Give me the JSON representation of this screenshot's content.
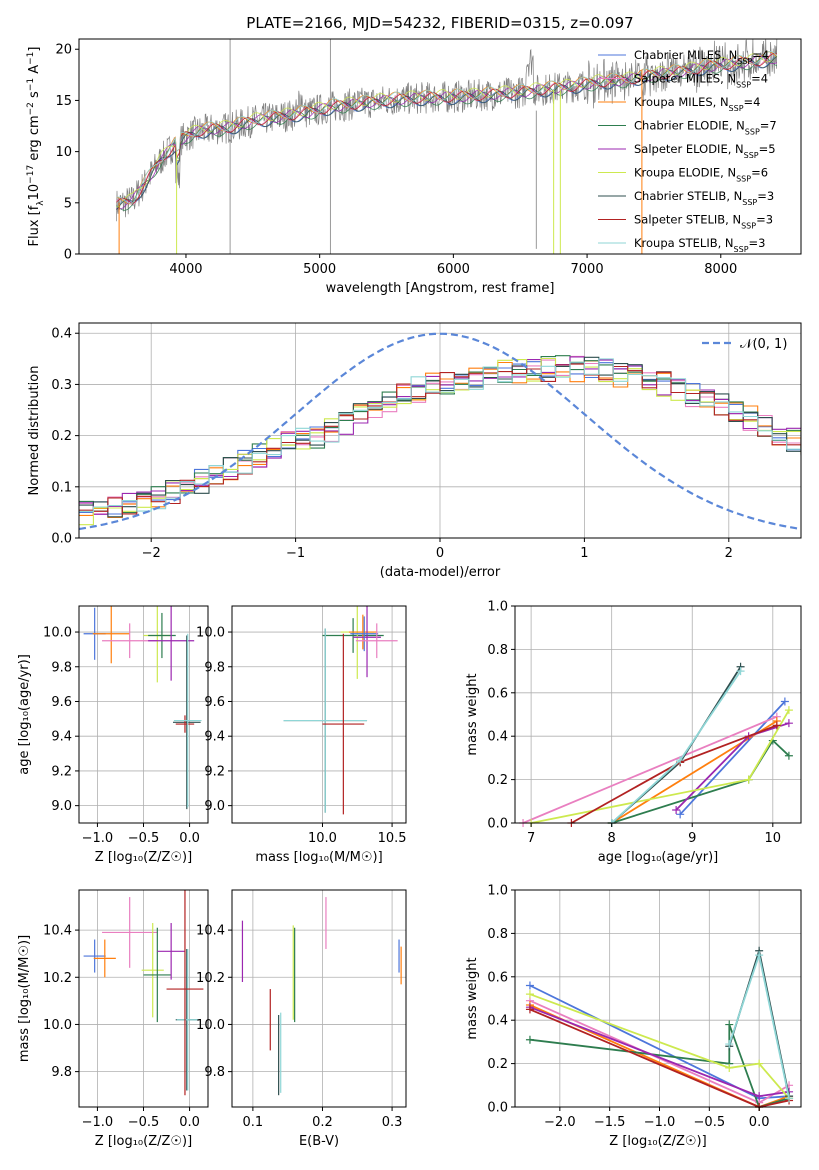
{
  "figure_title": "PLATE=2166, MJD=54232, FIBERID=0315, z=0.097",
  "colors": {
    "Chabrier MILES": "#4d76db",
    "Salpeter MILES": "#e97fc0",
    "Kroupa MILES": "#ff7f0e",
    "Chabrier ELODIE": "#2e7d4f",
    "Salpeter ELODIE": "#9b27b0",
    "Kroupa ELODIE": "#cde94f",
    "Chabrier STELIB": "#2f4f4f",
    "Salpeter STELIB": "#b22222",
    "Kroupa STELIB": "#8fd6d6",
    "data": "#808080",
    "normal": "#5b87d8"
  },
  "chart_data": [
    {
      "id": "spectrum",
      "type": "line",
      "title": "PLATE=2166, MJD=54232, FIBERID=0315, z=0.097",
      "xlabel": "wavelength [Angstrom, rest frame]",
      "ylabel_parts": [
        "Flux [f",
        "λ",
        "10",
        "−17",
        " erg cm",
        "−2",
        " s",
        "−1",
        " A",
        "−1",
        "]"
      ],
      "xlim": [
        3200,
        8600
      ],
      "ylim": [
        0,
        21
      ],
      "xticks": [
        4000,
        5000,
        6000,
        7000,
        8000
      ],
      "yticks": [
        0,
        5,
        10,
        15,
        20
      ],
      "grid": false,
      "legend_position": "right",
      "legend": [
        {
          "label": "Chabrier MILES, N",
          "sub": "SSP",
          "n": "=4",
          "color": "#4d76db"
        },
        {
          "label": "Salpeter MILES, N",
          "sub": "SSP",
          "n": "=4",
          "color": "#e97fc0"
        },
        {
          "label": "Kroupa MILES, N",
          "sub": "SSP",
          "n": "=4",
          "color": "#ff7f0e"
        },
        {
          "label": "Chabrier ELODIE, N",
          "sub": "SSP",
          "n": "=7",
          "color": "#2e7d4f"
        },
        {
          "label": "Salpeter ELODIE, N",
          "sub": "SSP",
          "n": "=5",
          "color": "#9b27b0"
        },
        {
          "label": "Kroupa ELODIE, N",
          "sub": "SSP",
          "n": "=6",
          "color": "#cde94f"
        },
        {
          "label": "Chabrier STELIB, N",
          "sub": "SSP",
          "n": "=3",
          "color": "#2f4f4f"
        },
        {
          "label": "Salpeter STELIB, N",
          "sub": "SSP",
          "n": "=3",
          "color": "#b22222"
        },
        {
          "label": "Kroupa STELIB, N",
          "sub": "SSP",
          "n": "=3",
          "color": "#8fd6d6"
        }
      ],
      "continuum_x": [
        3480,
        3600,
        3700,
        3800,
        3900,
        4000,
        4100,
        4200,
        4300,
        4400,
        4500,
        4700,
        4900,
        5100,
        5300,
        5500,
        5700,
        5900,
        6100,
        6300,
        6500,
        6700,
        6900,
        7100,
        7300,
        7500,
        7700,
        7900,
        8100,
        8300,
        8400
      ],
      "continuum_y": [
        4.8,
        5.2,
        7.0,
        9.0,
        10.5,
        11.5,
        12.0,
        12.2,
        12.3,
        12.6,
        13.0,
        13.4,
        13.8,
        14.4,
        14.7,
        15.0,
        15.2,
        15.3,
        15.4,
        15.6,
        15.8,
        16.1,
        16.4,
        16.8,
        17.0,
        17.5,
        17.8,
        18.3,
        18.6,
        18.9,
        19.1
      ]
    },
    {
      "id": "residuals",
      "type": "histogram",
      "xlabel": "(data-model)/error",
      "ylabel": "Normed distribution",
      "xlim": [
        -2.5,
        2.5
      ],
      "ylim": [
        0,
        0.42
      ],
      "xticks": [
        -2,
        -1,
        0,
        1,
        2
      ],
      "yticks": [
        0.0,
        0.1,
        0.2,
        0.3,
        0.4
      ],
      "grid": true,
      "legend_position": "upper right",
      "normal_label": "𝒩(0, 1)",
      "bin_edges_start": -2.5,
      "bin_width": 0.1,
      "base_values": [
        0.05,
        0.055,
        0.06,
        0.065,
        0.07,
        0.08,
        0.09,
        0.1,
        0.11,
        0.125,
        0.135,
        0.15,
        0.16,
        0.175,
        0.185,
        0.195,
        0.2,
        0.21,
        0.225,
        0.24,
        0.255,
        0.27,
        0.28,
        0.29,
        0.3,
        0.305,
        0.31,
        0.315,
        0.32,
        0.325,
        0.325,
        0.33,
        0.33,
        0.335,
        0.33,
        0.33,
        0.325,
        0.32,
        0.315,
        0.31,
        0.3,
        0.29,
        0.28,
        0.27,
        0.26,
        0.245,
        0.235,
        0.22,
        0.205,
        0.19,
        0.18,
        0.165,
        0.155,
        0.145,
        0.135,
        0.125,
        0.11,
        0.1,
        0.09,
        0.085,
        0.08,
        0.075,
        0.07,
        0.065,
        0.06,
        0.055,
        0.055,
        0.05,
        0.045,
        0.04,
        0.04,
        0.035,
        0.035,
        0.03,
        0.03,
        0.03,
        0.025,
        0.025,
        0.025,
        0.02,
        0.02
      ]
    },
    {
      "id": "age_vs_Z",
      "type": "errorbar",
      "xlabel": "Z [log₁₀(Z/Z☉)]",
      "ylabel": "age  [log₁₀(age/yr)]",
      "xlim": [
        -1.2,
        0.2
      ],
      "ylim": [
        8.9,
        10.15
      ],
      "xticks": [
        -1.0,
        -0.5,
        0.0
      ],
      "xtick_labels": [
        "−1.0",
        "−0.5",
        "0.0"
      ],
      "yticks": [
        9.0,
        9.2,
        9.4,
        9.6,
        9.8,
        10.0
      ],
      "grid": true,
      "points": [
        {
          "model": "Chabrier MILES",
          "x": -1.03,
          "xerr": 0.12,
          "y": 9.99,
          "yerr": 0.15
        },
        {
          "model": "Kroupa MILES",
          "x": -0.85,
          "xerr": 0.2,
          "y": 9.99,
          "yerr": 0.17
        },
        {
          "model": "Salpeter MILES",
          "x": -0.65,
          "xerr": 0.3,
          "y": 9.95,
          "yerr": 0.1
        },
        {
          "model": "Kroupa ELODIE",
          "x": -0.35,
          "xerr": 0.15,
          "y": 9.98,
          "yerr": 0.27
        },
        {
          "model": "Chabrier ELODIE",
          "x": -0.3,
          "xerr": 0.15,
          "y": 9.98,
          "yerr": 0.13
        },
        {
          "model": "Salpeter ELODIE",
          "x": -0.2,
          "xerr": 0.25,
          "y": 9.95,
          "yerr": 0.23
        },
        {
          "model": "Chabrier STELIB",
          "x": -0.03,
          "xerr": 0.15,
          "y": 9.48,
          "yerr": 0.5
        },
        {
          "model": "Salpeter STELIB",
          "x": -0.05,
          "xerr": 0.1,
          "y": 9.47,
          "yerr": 0.05
        },
        {
          "model": "Kroupa STELIB",
          "x": -0.02,
          "xerr": 0.15,
          "y": 9.49,
          "yerr": 0.5
        }
      ]
    },
    {
      "id": "age_vs_mass",
      "type": "errorbar",
      "xlabel": "mass [log₁₀(M/M☉)]",
      "ylabel": "",
      "xlim": [
        9.35,
        10.6
      ],
      "ylim": [
        8.9,
        10.15
      ],
      "xticks": [
        10.0,
        10.5
      ],
      "xtick_labels": [
        "10.0",
        "10.5"
      ],
      "yticks": [
        9.0,
        9.2,
        9.4,
        9.6,
        9.8,
        10.0
      ],
      "grid": true,
      "points": [
        {
          "model": "Chabrier ELODIE",
          "x": 10.22,
          "xerr": 0.22,
          "y": 9.98,
          "yerr": 0.1
        },
        {
          "model": "Kroupa ELODIE",
          "x": 10.25,
          "xerr": 0.12,
          "y": 10.0,
          "yerr": 0.27
        },
        {
          "model": "Kroupa MILES",
          "x": 10.29,
          "xerr": 0.1,
          "y": 10.0,
          "yerr": 0.1
        },
        {
          "model": "Salpeter ELODIE",
          "x": 10.32,
          "xerr": 0.1,
          "y": 9.97,
          "yerr": 0.23
        },
        {
          "model": "Chabrier MILES",
          "x": 10.3,
          "xerr": 0.1,
          "y": 9.99,
          "yerr": 0.1
        },
        {
          "model": "Salpeter MILES",
          "x": 10.39,
          "xerr": 0.15,
          "y": 9.95,
          "yerr": 0.1
        },
        {
          "model": "Chabrier STELIB",
          "x": 10.02,
          "xerr": 0.3,
          "y": 9.49,
          "yerr": 0.53
        },
        {
          "model": "Kroupa STELIB",
          "x": 10.02,
          "xerr": 0.3,
          "y": 9.49,
          "yerr": 0.53
        },
        {
          "model": "Salpeter STELIB",
          "x": 10.15,
          "xerr": 0.15,
          "y": 9.47,
          "yerr": 0.52
        }
      ]
    },
    {
      "id": "weight_vs_age",
      "type": "line",
      "xlabel": "age  [log₁₀(age/yr)]",
      "ylabel": "mass weight",
      "xlim": [
        6.8,
        10.35
      ],
      "ylim": [
        0,
        1
      ],
      "xticks": [
        7,
        8,
        9,
        10
      ],
      "yticks": [
        0.0,
        0.2,
        0.4,
        0.6,
        0.8,
        1.0
      ],
      "grid": true,
      "series": [
        {
          "model": "Chabrier MILES",
          "x": [
            8.85,
            10.15
          ],
          "y": [
            0.04,
            0.56
          ]
        },
        {
          "model": "Salpeter MILES",
          "x": [
            6.9,
            10.05
          ],
          "y": [
            0.0,
            0.49
          ]
        },
        {
          "model": "Kroupa MILES",
          "x": [
            8.0,
            10.05
          ],
          "y": [
            0.0,
            0.47
          ]
        },
        {
          "model": "Chabrier ELODIE",
          "x": [
            8.0,
            9.7,
            10.0,
            10.2
          ],
          "y": [
            0.0,
            0.2,
            0.38,
            0.31
          ]
        },
        {
          "model": "Salpeter ELODIE",
          "x": [
            8.8,
            9.7,
            10.2
          ],
          "y": [
            0.06,
            0.4,
            0.46
          ]
        },
        {
          "model": "Kroupa ELODIE",
          "x": [
            7.0,
            9.7,
            10.2
          ],
          "y": [
            0.0,
            0.2,
            0.52
          ]
        },
        {
          "model": "Chabrier STELIB",
          "x": [
            8.0,
            8.85,
            9.6
          ],
          "y": [
            0.0,
            0.28,
            0.72
          ]
        },
        {
          "model": "Salpeter STELIB",
          "x": [
            7.5,
            8.85,
            10.05
          ],
          "y": [
            0.0,
            0.28,
            0.45
          ]
        },
        {
          "model": "Kroupa STELIB",
          "x": [
            8.0,
            8.85,
            9.6
          ],
          "y": [
            0.0,
            0.29,
            0.7
          ]
        }
      ]
    },
    {
      "id": "mass_vs_Z",
      "type": "errorbar",
      "xlabel": "Z [log₁₀(Z/Z☉)]",
      "ylabel": "mass [log₁₀(M/M☉)]",
      "xlim": [
        -1.2,
        0.2
      ],
      "ylim": [
        9.65,
        10.57
      ],
      "xticks": [
        -1.0,
        -0.5,
        0.0
      ],
      "xtick_labels": [
        "−1.0",
        "−0.5",
        "0.0"
      ],
      "yticks": [
        9.8,
        10.0,
        10.2,
        10.4
      ],
      "grid": true,
      "points": [
        {
          "model": "Chabrier MILES",
          "x": -1.03,
          "xerr": 0.12,
          "y": 10.29,
          "yerr": 0.07
        },
        {
          "model": "Kroupa MILES",
          "x": -0.92,
          "xerr": 0.12,
          "y": 10.28,
          "yerr": 0.08
        },
        {
          "model": "Salpeter MILES",
          "x": -0.65,
          "xerr": 0.3,
          "y": 10.39,
          "yerr": 0.15
        },
        {
          "model": "Kroupa ELODIE",
          "x": -0.4,
          "xerr": 0.12,
          "y": 10.23,
          "yerr": 0.2
        },
        {
          "model": "Chabrier ELODIE",
          "x": -0.35,
          "xerr": 0.15,
          "y": 10.21,
          "yerr": 0.2
        },
        {
          "model": "Salpeter ELODIE",
          "x": -0.2,
          "xerr": 0.15,
          "y": 10.31,
          "yerr": 0.12
        },
        {
          "model": "Chabrier STELIB",
          "x": -0.03,
          "xerr": 0.12,
          "y": 10.02,
          "yerr": 0.3
        },
        {
          "model": "Kroupa STELIB",
          "x": -0.02,
          "xerr": 0.12,
          "y": 10.02,
          "yerr": 0.3
        },
        {
          "model": "Salpeter STELIB",
          "x": -0.05,
          "xerr": 0.2,
          "y": 10.15,
          "yerr": 0.45
        }
      ]
    },
    {
      "id": "mass_vs_EBV",
      "type": "errorbar",
      "xlabel": "E(B-V)",
      "ylabel": "",
      "xlim": [
        0.07,
        0.32
      ],
      "ylim": [
        9.65,
        10.57
      ],
      "xticks": [
        0.1,
        0.2,
        0.3
      ],
      "xtick_labels": [
        "0.1",
        "0.2",
        "0.3"
      ],
      "yticks": [
        9.8,
        10.0,
        10.2,
        10.4
      ],
      "grid": true,
      "points": [
        {
          "model": "Salpeter ELODIE",
          "x": 0.085,
          "xerr": 0,
          "y": 10.31,
          "yerr": 0.13
        },
        {
          "model": "Salpeter STELIB",
          "x": 0.125,
          "xerr": 0,
          "y": 10.02,
          "yerr": 0.13
        },
        {
          "model": "Chabrier STELIB",
          "x": 0.137,
          "xerr": 0,
          "y": 9.87,
          "yerr": 0.17
        },
        {
          "model": "Kroupa STELIB",
          "x": 0.14,
          "xerr": 0,
          "y": 9.88,
          "yerr": 0.17
        },
        {
          "model": "Kroupa ELODIE",
          "x": 0.158,
          "xerr": 0,
          "y": 10.22,
          "yerr": 0.2
        },
        {
          "model": "Chabrier ELODIE",
          "x": 0.16,
          "xerr": 0,
          "y": 10.21,
          "yerr": 0.2
        },
        {
          "model": "Salpeter MILES",
          "x": 0.205,
          "xerr": 0,
          "y": 10.43,
          "yerr": 0.11
        },
        {
          "model": "Chabrier MILES",
          "x": 0.31,
          "xerr": 0,
          "y": 10.29,
          "yerr": 0.07
        },
        {
          "model": "Kroupa MILES",
          "x": 0.313,
          "xerr": 0,
          "y": 10.25,
          "yerr": 0.08
        }
      ]
    },
    {
      "id": "weight_vs_Z",
      "type": "line",
      "xlabel": "Z [log₁₀(Z/Z☉)]",
      "ylabel": "mass weight",
      "xlim": [
        -2.45,
        0.42
      ],
      "ylim": [
        0,
        1
      ],
      "xticks": [
        -2.0,
        -1.5,
        -1.0,
        -0.5,
        0.0
      ],
      "xtick_labels": [
        "−2.0",
        "−1.5",
        "−1.0",
        "−0.5",
        "0.0"
      ],
      "yticks": [
        0.0,
        0.2,
        0.4,
        0.6,
        0.8,
        1.0
      ],
      "grid": true,
      "series": [
        {
          "model": "Chabrier MILES",
          "x": [
            -2.3,
            0.0,
            0.3
          ],
          "y": [
            0.56,
            0.04,
            0.05
          ]
        },
        {
          "model": "Salpeter MILES",
          "x": [
            -2.3,
            0.0,
            0.3
          ],
          "y": [
            0.49,
            0.02,
            0.1
          ]
        },
        {
          "model": "Kroupa MILES",
          "x": [
            -2.3,
            0.0,
            0.3
          ],
          "y": [
            0.47,
            0.0,
            0.05
          ]
        },
        {
          "model": "Chabrier ELODIE",
          "x": [
            -2.3,
            -0.3,
            -0.3,
            0.0,
            0.3
          ],
          "y": [
            0.31,
            0.2,
            0.38,
            0.0,
            0.04
          ]
        },
        {
          "model": "Salpeter ELODIE",
          "x": [
            -2.3,
            0.0,
            0.3
          ],
          "y": [
            0.46,
            0.05,
            0.07
          ]
        },
        {
          "model": "Kroupa ELODIE",
          "x": [
            -2.3,
            -0.3,
            0.0,
            0.3
          ],
          "y": [
            0.52,
            0.18,
            0.2,
            0.04
          ]
        },
        {
          "model": "Chabrier STELIB",
          "x": [
            -0.3,
            0.0,
            0.3
          ],
          "y": [
            0.28,
            0.72,
            0.05
          ]
        },
        {
          "model": "Salpeter STELIB",
          "x": [
            -2.3,
            0.0,
            0.3
          ],
          "y": [
            0.45,
            0.0,
            0.03
          ]
        },
        {
          "model": "Kroupa STELIB",
          "x": [
            -0.3,
            0.0,
            0.3
          ],
          "y": [
            0.29,
            0.7,
            0.04
          ]
        }
      ]
    }
  ]
}
